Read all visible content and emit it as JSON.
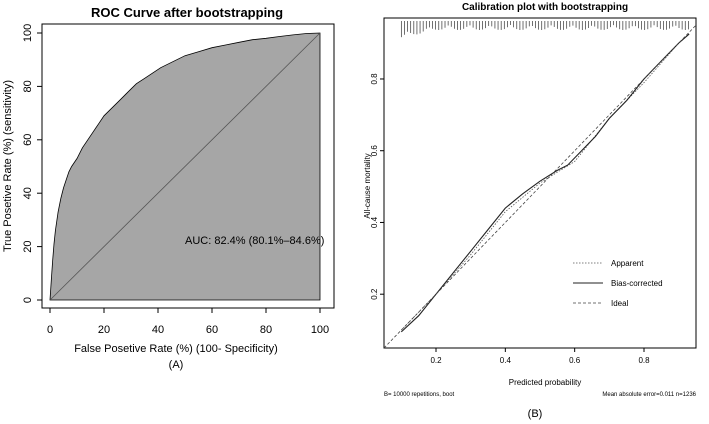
{
  "chart_data": [
    {
      "type": "area",
      "title": "ROC Curve after bootstrapping",
      "xlabel": "False Posetive Rate (%) (100- Specificity)",
      "ylabel": "True Posetive Rate (%) (sensitivity)",
      "xlim": [
        0,
        100
      ],
      "ylim": [
        0,
        100
      ],
      "x_ticks": [
        "0",
        "20",
        "40",
        "60",
        "80",
        "100"
      ],
      "y_ticks": [
        "0",
        "20",
        "40",
        "60",
        "80",
        "100"
      ],
      "annotation": "AUC: 82.4% (80.1%–84.6%)",
      "caption": "(A)",
      "fill_color": "#a6a6a6",
      "series": [
        {
          "x": [
            0,
            0.5,
            1,
            1.5,
            2,
            3,
            4,
            5,
            6,
            7,
            8,
            10,
            12,
            14,
            16,
            18,
            20,
            23,
            26,
            29,
            32,
            35,
            38,
            41,
            44,
            47,
            50,
            55,
            60,
            65,
            70,
            75,
            80,
            85,
            90,
            95,
            100
          ],
          "y": [
            0,
            8,
            15,
            21,
            26,
            33,
            38,
            42,
            45,
            48,
            50,
            53,
            57,
            60,
            63,
            66,
            69,
            72,
            75,
            78,
            81,
            83,
            85,
            87,
            88.5,
            90,
            91.5,
            93,
            94.5,
            95.5,
            96.5,
            97.5,
            98,
            98.7,
            99.3,
            99.8,
            100
          ]
        }
      ],
      "reference_line": [
        [
          0,
          0
        ],
        [
          100,
          100
        ]
      ]
    },
    {
      "type": "line",
      "title": "Calibration plot with bootstrapping",
      "xlabel": "Predicted probability",
      "ylabel": "All-cause mortality",
      "xlim": [
        0.05,
        0.95
      ],
      "ylim": [
        0.05,
        0.97
      ],
      "x_ticks": [
        "0.2",
        "0.4",
        "0.6",
        "0.8"
      ],
      "y_ticks": [
        "0.2",
        "0.4",
        "0.6",
        "0.8"
      ],
      "legend": [
        "Apparent",
        "Bias-corrected",
        "Ideal"
      ],
      "legend_position": "bottom-right",
      "footer_left": "B= 10000 repetitions, boot",
      "footer_right": "Mean absolute error=0.011 n=1236",
      "caption": "(B)",
      "series": [
        {
          "name": "Apparent",
          "x": [
            0.1,
            0.2,
            0.3,
            0.4,
            0.5,
            0.55,
            0.6,
            0.7,
            0.8,
            0.9,
            0.93
          ],
          "y": [
            0.1,
            0.2,
            0.31,
            0.43,
            0.51,
            0.54,
            0.57,
            0.69,
            0.79,
            0.9,
            0.925
          ]
        },
        {
          "name": "Bias-corrected",
          "x": [
            0.1,
            0.15,
            0.2,
            0.25,
            0.3,
            0.35,
            0.4,
            0.45,
            0.5,
            0.55,
            0.58,
            0.62,
            0.66,
            0.7,
            0.75,
            0.8,
            0.85,
            0.9,
            0.93
          ],
          "y": [
            0.095,
            0.14,
            0.2,
            0.26,
            0.32,
            0.38,
            0.44,
            0.48,
            0.515,
            0.545,
            0.56,
            0.6,
            0.64,
            0.69,
            0.74,
            0.8,
            0.85,
            0.9,
            0.925
          ]
        },
        {
          "name": "Ideal",
          "x": [
            0.05,
            0.95
          ],
          "y": [
            0.05,
            0.95
          ]
        }
      ]
    }
  ]
}
